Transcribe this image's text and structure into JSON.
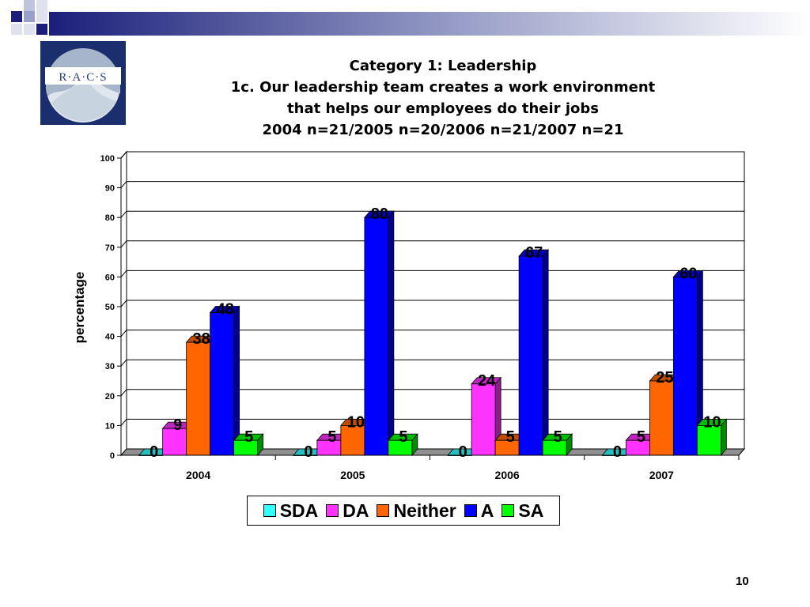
{
  "slide": {
    "page_number": "10",
    "logo_text": "R·A·C·S"
  },
  "title": {
    "line1": "Category 1: Leadership",
    "line2": "1c. Our leadership team creates a work environment",
    "line3": "that helps our employees do their jobs",
    "line4": "2004 n=21/2005 n=20/2006 n=21/2007 n=21"
  },
  "colors": {
    "SDA": "#33ffff",
    "DA": "#ff33ff",
    "Neither": "#ff6600",
    "A": "#0000ff",
    "SA": "#00ff00",
    "decor_navy": "#1b1f7a"
  },
  "chart_data": {
    "type": "bar",
    "title": "",
    "xlabel": "",
    "ylabel": "percentage",
    "ylim": [
      0,
      100
    ],
    "yticks": [
      "0",
      "10",
      "20",
      "30",
      "40",
      "50",
      "60",
      "70",
      "80",
      "90",
      "100"
    ],
    "categories": [
      "2004",
      "2005",
      "2006",
      "2007"
    ],
    "legend_position": "bottom",
    "grid": true,
    "series": [
      {
        "name": "SDA",
        "values": [
          0,
          0,
          0,
          0
        ]
      },
      {
        "name": "DA",
        "values": [
          9,
          5,
          24,
          5
        ]
      },
      {
        "name": "Neither",
        "values": [
          38,
          10,
          5,
          25
        ]
      },
      {
        "name": "A",
        "values": [
          48,
          80,
          67,
          60
        ]
      },
      {
        "name": "SA",
        "values": [
          5,
          5,
          5,
          10
        ]
      }
    ]
  }
}
